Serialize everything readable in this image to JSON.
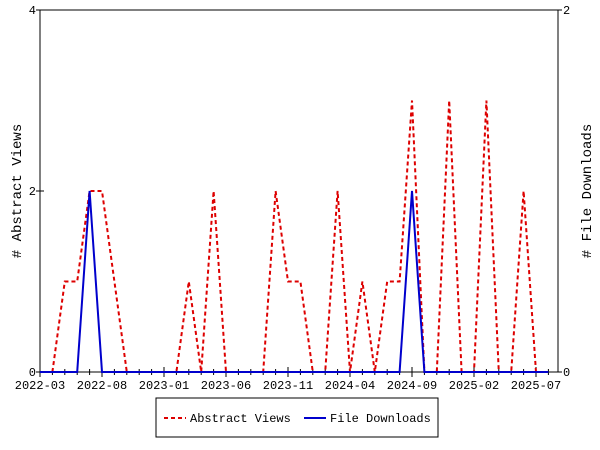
{
  "chart_data": {
    "type": "line",
    "title": "",
    "xlabel": "",
    "ylabel": "# Abstract Views",
    "y2label": "# File Downloads",
    "ylim": [
      0,
      4
    ],
    "y2lim": [
      0,
      2
    ],
    "yticks": [
      "0",
      "2",
      "4"
    ],
    "y2ticks": [
      "0",
      "2"
    ],
    "x": [
      "2022-03",
      "2022-04",
      "2022-05",
      "2022-06",
      "2022-07",
      "2022-08",
      "2022-09",
      "2022-10",
      "2022-11",
      "2022-12",
      "2023-01",
      "2023-02",
      "2023-03",
      "2023-04",
      "2023-05",
      "2023-06",
      "2023-07",
      "2023-08",
      "2023-09",
      "2023-10",
      "2023-11",
      "2023-12",
      "2024-01",
      "2024-02",
      "2024-03",
      "2024-04",
      "2024-05",
      "2024-06",
      "2024-07",
      "2024-08",
      "2024-09",
      "2024-10",
      "2024-11",
      "2024-12",
      "2025-01",
      "2025-02",
      "2025-03",
      "2025-04",
      "2025-05",
      "2025-06",
      "2025-07",
      "2025-08"
    ],
    "xticks": [
      "2022-03",
      "2022-08",
      "2023-01",
      "2023-06",
      "2023-11",
      "2024-04",
      "2024-09",
      "2025-02",
      "2025-07"
    ],
    "grid": false,
    "legend_position": "bottom",
    "series": [
      {
        "name": "Abstract Views",
        "axis": "left",
        "color": "#dd0000",
        "style": "dashed",
        "values": [
          null,
          0,
          1,
          1,
          2,
          2,
          1,
          0,
          0,
          0,
          0,
          0,
          1,
          0,
          2,
          0,
          0,
          0,
          0,
          2,
          1,
          1,
          0,
          0,
          2,
          0,
          1,
          0,
          1,
          1,
          3,
          0,
          0,
          3,
          0,
          0,
          3,
          0,
          0,
          2,
          0,
          null
        ]
      },
      {
        "name": "File Downloads",
        "axis": "right",
        "color": "#0000cc",
        "style": "solid",
        "values": [
          0,
          0,
          0,
          0,
          1,
          0,
          0,
          0,
          0,
          0,
          0,
          0,
          0,
          0,
          0,
          0,
          0,
          0,
          0,
          0,
          0,
          0,
          0,
          0,
          0,
          0,
          0,
          0,
          0,
          0,
          1,
          0,
          0,
          0,
          0,
          0,
          0,
          0,
          0,
          0,
          0,
          0
        ]
      }
    ]
  }
}
